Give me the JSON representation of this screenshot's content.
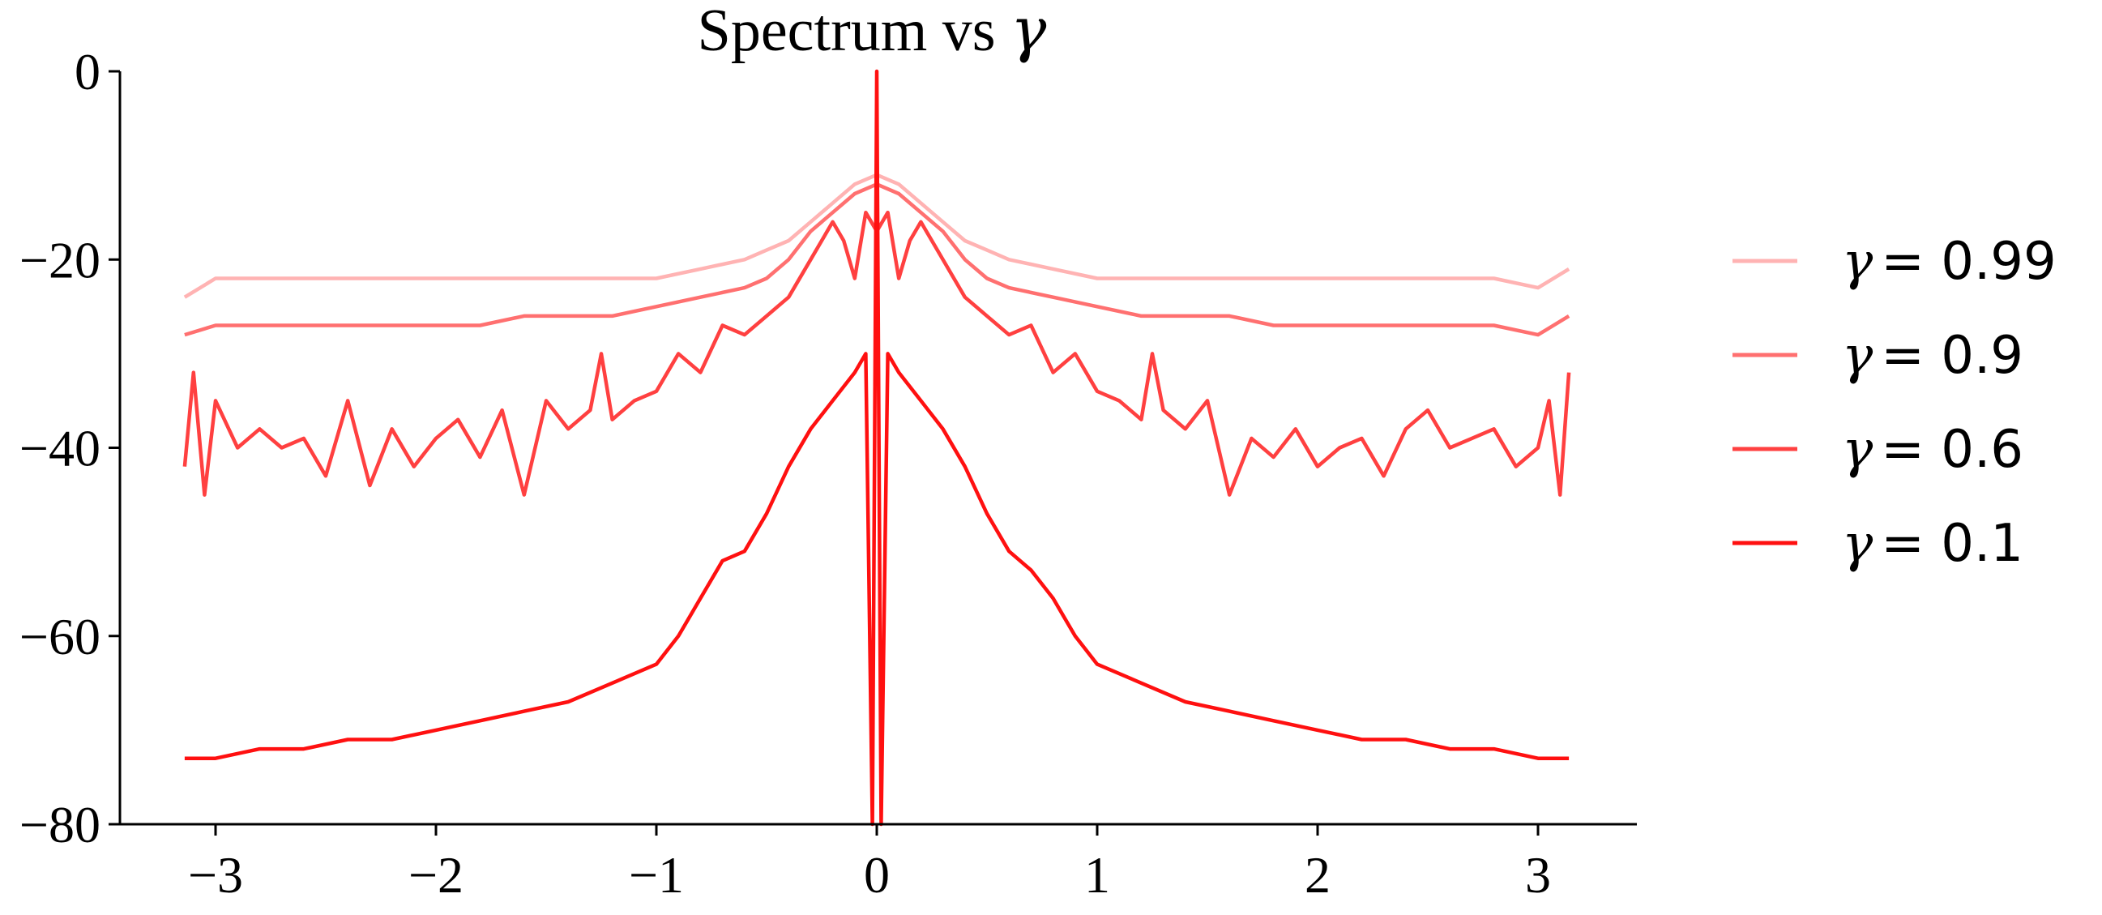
{
  "chart_data": {
    "type": "line",
    "title_prefix": "Spectrum vs ",
    "title_symbol": "γ",
    "xlim": [
      -3.14,
      3.14
    ],
    "ylim": [
      -80,
      0
    ],
    "xticks": [
      -3,
      -2,
      -1,
      0,
      1,
      2,
      3
    ],
    "xtick_labels": [
      "−3",
      "−2",
      "−1",
      "0",
      "1",
      "2",
      "3"
    ],
    "yticks": [
      0,
      -20,
      -40,
      -60,
      -80
    ],
    "ytick_labels": [
      "0",
      "−20",
      "−40",
      "−60",
      "−80"
    ],
    "grid": false,
    "legend_position": "right",
    "series": [
      {
        "name": "γ = 0.99",
        "symbol": "γ",
        "value_label": "= 0.99",
        "color": "#ffb3b3",
        "x": [
          -3.14,
          -3.0,
          -2.8,
          -2.6,
          -2.4,
          -2.2,
          -2.0,
          -1.8,
          -1.6,
          -1.4,
          -1.2,
          -1.0,
          -0.8,
          -0.6,
          -0.5,
          -0.4,
          -0.3,
          -0.2,
          -0.1,
          0.0,
          0.1,
          0.2,
          0.3,
          0.4,
          0.5,
          0.6,
          0.8,
          1.0,
          1.2,
          1.4,
          1.6,
          1.8,
          2.0,
          2.2,
          2.4,
          2.6,
          2.8,
          3.0,
          3.14
        ],
        "y": [
          -24,
          -22,
          -22,
          -22,
          -22,
          -22,
          -22,
          -22,
          -22,
          -22,
          -22,
          -22,
          -21,
          -20,
          -19,
          -18,
          -16,
          -14,
          -12,
          -11,
          -12,
          -14,
          -16,
          -18,
          -19,
          -20,
          -21,
          -22,
          -22,
          -22,
          -22,
          -22,
          -22,
          -22,
          -22,
          -22,
          -22,
          -23,
          -21
        ]
      },
      {
        "name": "γ = 0.9",
        "symbol": "γ",
        "value_label": "= 0.9",
        "color": "#ff7070",
        "x": [
          -3.14,
          -3.0,
          -2.8,
          -2.6,
          -2.4,
          -2.2,
          -2.0,
          -1.8,
          -1.6,
          -1.4,
          -1.2,
          -1.0,
          -0.8,
          -0.6,
          -0.5,
          -0.4,
          -0.3,
          -0.2,
          -0.1,
          0.0,
          0.1,
          0.2,
          0.3,
          0.4,
          0.5,
          0.6,
          0.8,
          1.0,
          1.2,
          1.4,
          1.6,
          1.8,
          2.0,
          2.2,
          2.4,
          2.6,
          2.8,
          3.0,
          3.14
        ],
        "y": [
          -28,
          -27,
          -27,
          -27,
          -27,
          -27,
          -27,
          -27,
          -26,
          -26,
          -26,
          -25,
          -24,
          -23,
          -22,
          -20,
          -17,
          -15,
          -13,
          -12,
          -13,
          -15,
          -17,
          -20,
          -22,
          -23,
          -24,
          -25,
          -26,
          -26,
          -26,
          -27,
          -27,
          -27,
          -27,
          -27,
          -27,
          -28,
          -26
        ]
      },
      {
        "name": "γ = 0.6",
        "symbol": "γ",
        "value_label": "= 0.6",
        "color": "#ff4040",
        "x": [
          -3.14,
          -3.1,
          -3.05,
          -3.0,
          -2.9,
          -2.8,
          -2.7,
          -2.6,
          -2.5,
          -2.4,
          -2.3,
          -2.2,
          -2.1,
          -2.0,
          -1.9,
          -1.8,
          -1.7,
          -1.6,
          -1.55,
          -1.5,
          -1.4,
          -1.3,
          -1.25,
          -1.2,
          -1.1,
          -1.0,
          -0.9,
          -0.8,
          -0.7,
          -0.6,
          -0.5,
          -0.4,
          -0.3,
          -0.2,
          -0.15,
          -0.1,
          -0.05,
          0.0,
          0.05,
          0.1,
          0.15,
          0.2,
          0.3,
          0.4,
          0.5,
          0.6,
          0.7,
          0.8,
          0.9,
          1.0,
          1.1,
          1.2,
          1.25,
          1.3,
          1.4,
          1.5,
          1.55,
          1.6,
          1.7,
          1.8,
          1.9,
          2.0,
          2.1,
          2.2,
          2.3,
          2.4,
          2.5,
          2.6,
          2.7,
          2.8,
          2.9,
          3.0,
          3.05,
          3.1,
          3.14
        ],
        "y": [
          -42,
          -32,
          -45,
          -35,
          -40,
          -38,
          -40,
          -39,
          -43,
          -35,
          -44,
          -38,
          -42,
          -39,
          -37,
          -41,
          -36,
          -45,
          -40,
          -35,
          -38,
          -36,
          -30,
          -37,
          -35,
          -34,
          -30,
          -32,
          -27,
          -28,
          -26,
          -24,
          -20,
          -16,
          -18,
          -22,
          -15,
          -17,
          -15,
          -22,
          -18,
          -16,
          -20,
          -24,
          -26,
          -28,
          -27,
          -32,
          -30,
          -34,
          -35,
          -37,
          -30,
          -36,
          -38,
          -35,
          -40,
          -45,
          -39,
          -41,
          -38,
          -42,
          -40,
          -39,
          -43,
          -38,
          -36,
          -40,
          -39,
          -38,
          -42,
          -40,
          -35,
          -45,
          -32
        ]
      },
      {
        "name": "γ = 0.1",
        "symbol": "γ",
        "value_label": "= 0.1",
        "color": "#ff1010",
        "x": [
          -3.14,
          -3.0,
          -2.8,
          -2.6,
          -2.4,
          -2.2,
          -2.0,
          -1.8,
          -1.6,
          -1.4,
          -1.2,
          -1.0,
          -0.9,
          -0.8,
          -0.7,
          -0.6,
          -0.5,
          -0.4,
          -0.3,
          -0.2,
          -0.1,
          -0.05,
          -0.02,
          0.0,
          0.02,
          0.05,
          0.1,
          0.2,
          0.3,
          0.4,
          0.5,
          0.6,
          0.7,
          0.8,
          0.9,
          1.0,
          1.2,
          1.4,
          1.6,
          1.8,
          2.0,
          2.2,
          2.4,
          2.6,
          2.8,
          3.0,
          3.14
        ],
        "y": [
          -73,
          -73,
          -72,
          -72,
          -71,
          -71,
          -70,
          -69,
          -68,
          -67,
          -65,
          -63,
          -60,
          -56,
          -52,
          -51,
          -47,
          -42,
          -38,
          -35,
          -32,
          -30,
          -80,
          0,
          -80,
          -30,
          -32,
          -35,
          -38,
          -42,
          -47,
          -51,
          -53,
          -56,
          -60,
          -63,
          -65,
          -67,
          -68,
          -69,
          -70,
          -71,
          -71,
          -72,
          -72,
          -73,
          -73
        ]
      }
    ]
  }
}
